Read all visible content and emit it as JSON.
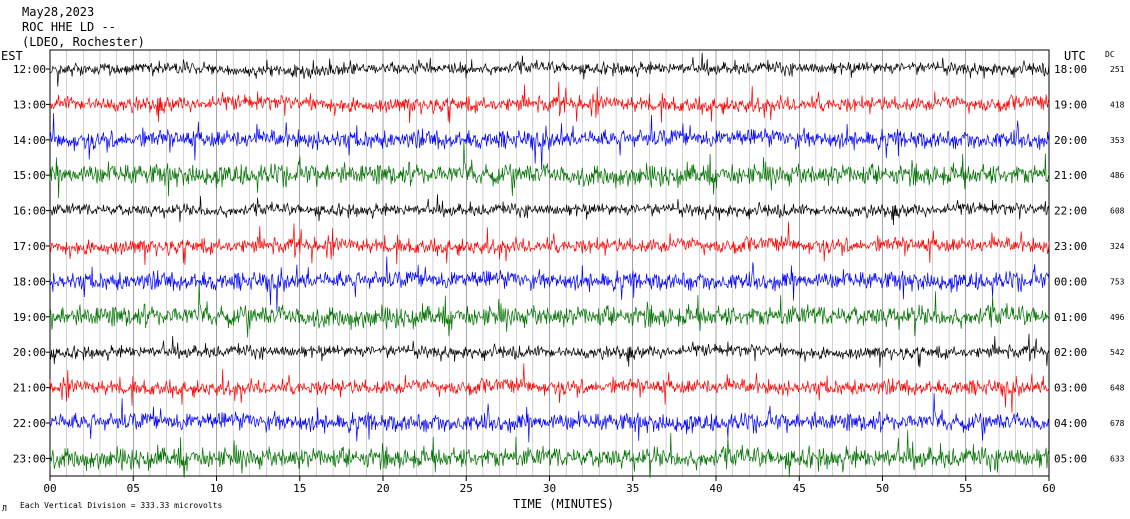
{
  "header": {
    "date": "May28,2023",
    "station": "ROC HHE LD --",
    "network": "(LDEO, Rochester)"
  },
  "chart_data": {
    "type": "line",
    "title": "",
    "xlabel": "TIME (MINUTES)",
    "xlim": [
      0,
      60
    ],
    "x_ticks": [
      "00",
      "05",
      "10",
      "15",
      "20",
      "25",
      "30",
      "35",
      "40",
      "45",
      "50",
      "55",
      "60"
    ],
    "left_axis_label": "EST",
    "right_axis_label": "UTC",
    "dc_label": "DC",
    "grid": "vertical",
    "trace_colors": [
      "#000000",
      "#ff0000",
      "#0000ff",
      "#007000"
    ],
    "series": [
      {
        "est": "12:00",
        "utc": "18:00",
        "dc": "251"
      },
      {
        "est": "13:00",
        "utc": "19:00",
        "dc": "418"
      },
      {
        "est": "14:00",
        "utc": "20:00",
        "dc": "353"
      },
      {
        "est": "15:00",
        "utc": "21:00",
        "dc": "486"
      },
      {
        "est": "16:00",
        "utc": "22:00",
        "dc": "608"
      },
      {
        "est": "17:00",
        "utc": "23:00",
        "dc": "324"
      },
      {
        "est": "18:00",
        "utc": "00:00",
        "dc": "753"
      },
      {
        "est": "19:00",
        "utc": "01:00",
        "dc": "496"
      },
      {
        "est": "20:00",
        "utc": "02:00",
        "dc": "542"
      },
      {
        "est": "21:00",
        "utc": "03:00",
        "dc": "648"
      },
      {
        "est": "22:00",
        "utc": "04:00",
        "dc": "678"
      },
      {
        "est": "23:00",
        "utc": "05:00",
        "dc": "633"
      }
    ]
  },
  "footer": {
    "scale_note": "Each Vertical Division =  333.33 microvolts"
  }
}
